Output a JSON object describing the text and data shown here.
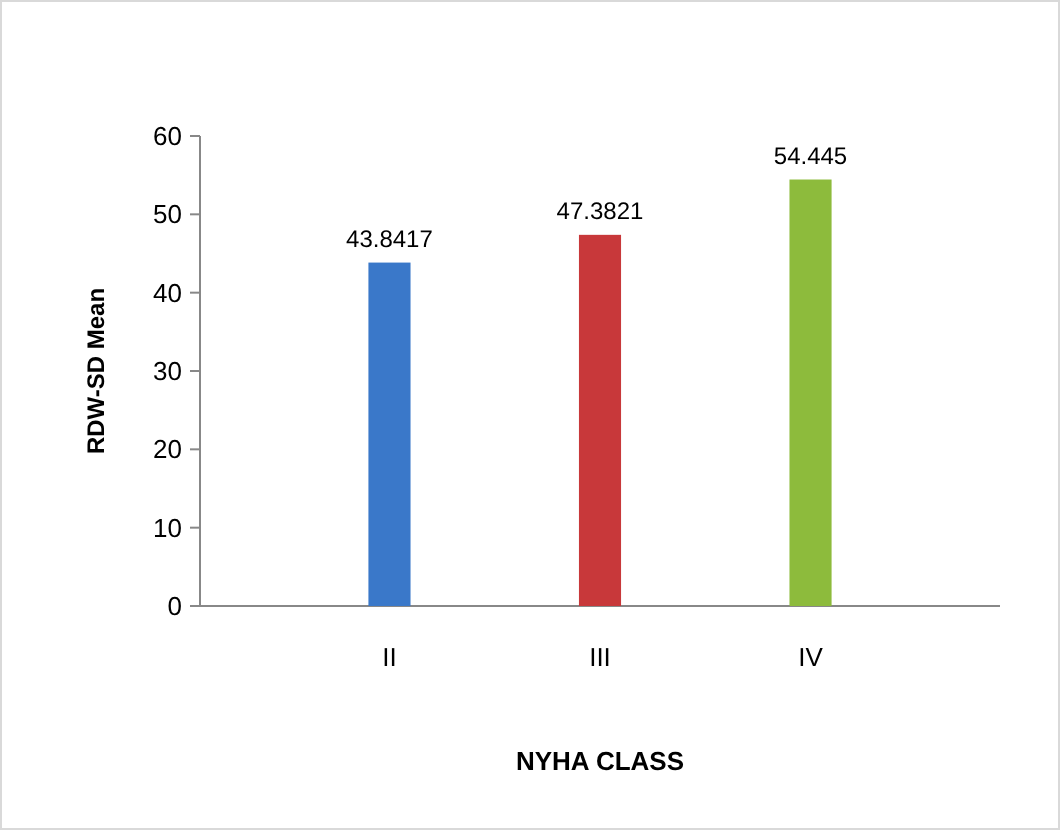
{
  "chart_data": {
    "type": "bar",
    "xlabel": "NYHA CLASS",
    "ylabel": "RDW-SD Mean",
    "categories": [
      "II",
      "III",
      "IV"
    ],
    "values": [
      43.8417,
      47.3821,
      54.445
    ],
    "colors": [
      "#3a78c9",
      "#c8383a",
      "#8dbb3c"
    ],
    "ylim": [
      0,
      60
    ],
    "yticks": [
      0,
      10,
      20,
      30,
      40,
      50,
      60
    ],
    "grid": false,
    "data_labels": true
  }
}
